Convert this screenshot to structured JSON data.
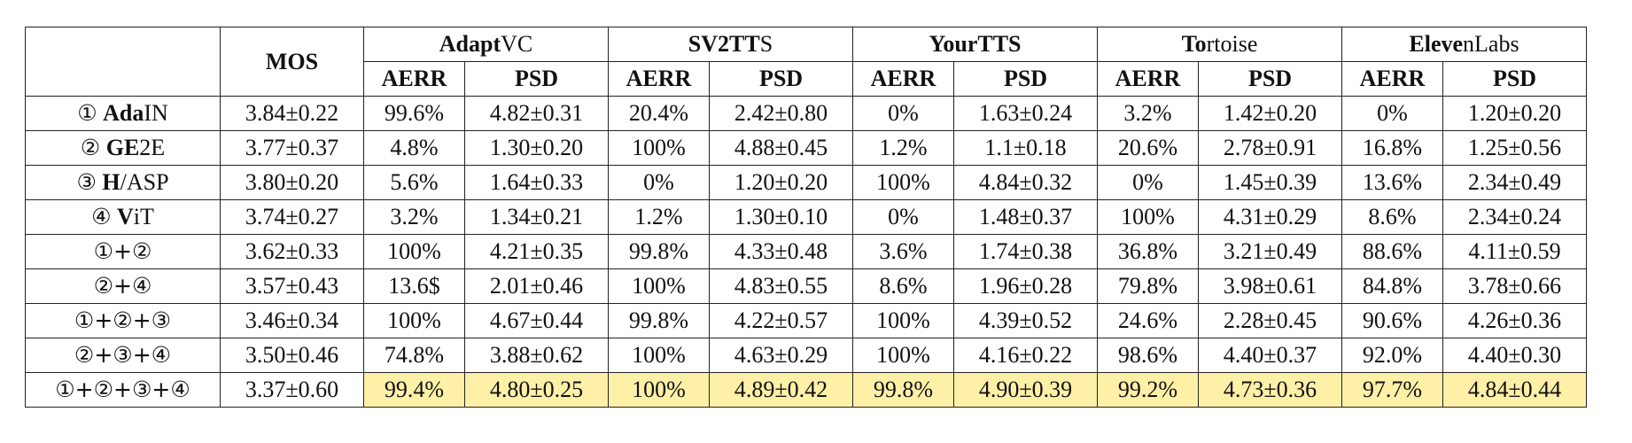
{
  "table": {
    "corner": "",
    "mos_header": "MOS",
    "systems": [
      {
        "bold": "Adapt",
        "rest": "VC"
      },
      {
        "bold": "SV2TT",
        "rest": "S"
      },
      {
        "bold": "YourTTS",
        "rest": ""
      },
      {
        "bold": "To",
        "rest": "rtoise"
      },
      {
        "bold": "Eleve",
        "rest": "nLabs"
      }
    ],
    "sub_headers": {
      "aerr": "AERR",
      "psd": "PSD"
    },
    "rows": [
      {
        "label_circ": "①",
        "label_bold": "Ada",
        "label_rest": "IN",
        "mos": "3.84±0.22",
        "cells": [
          "99.6%",
          "4.82±0.31",
          "20.4%",
          "2.42±0.80",
          "0%",
          "1.63±0.24",
          "3.2%",
          "1.42±0.20",
          "0%",
          "1.20±0.20"
        ],
        "highlight": false
      },
      {
        "label_circ": "②",
        "label_bold": "GE",
        "label_rest": "2E",
        "mos": "3.77±0.37",
        "cells": [
          "4.8%",
          "1.30±0.20",
          "100%",
          "4.88±0.45",
          "1.2%",
          "1.1±0.18",
          "20.6%",
          "2.78±0.91",
          "16.8%",
          "1.25±0.56"
        ],
        "highlight": false
      },
      {
        "label_circ": "③",
        "label_bold": "H",
        "label_rest": "/ASP",
        "mos": "3.80±0.20",
        "cells": [
          "5.6%",
          "1.64±0.33",
          "0%",
          "1.20±0.20",
          "100%",
          "4.84±0.32",
          "0%",
          "1.45±0.39",
          "13.6%",
          "2.34±0.49"
        ],
        "highlight": false
      },
      {
        "label_circ": "④",
        "label_bold": "V",
        "label_rest": "iT",
        "mos": "3.74±0.27",
        "cells": [
          "3.2%",
          "1.34±0.21",
          "1.2%",
          "1.30±0.10",
          "0%",
          "1.48±0.37",
          "100%",
          "4.31±0.29",
          "8.6%",
          "2.34±0.24"
        ],
        "highlight": false
      },
      {
        "label_circ": "①+②",
        "label_bold": "",
        "label_rest": "",
        "mos": "3.62±0.33",
        "cells": [
          "100%",
          "4.21±0.35",
          "99.8%",
          "4.33±0.48",
          "3.6%",
          "1.74±0.38",
          "36.8%",
          "3.21±0.49",
          "88.6%",
          "4.11±0.59"
        ],
        "highlight": false
      },
      {
        "label_circ": "②+④",
        "label_bold": "",
        "label_rest": "",
        "mos": "3.57±0.43",
        "cells": [
          "13.6$",
          "2.01±0.46",
          "100%",
          "4.83±0.55",
          "8.6%",
          "1.96±0.28",
          "79.8%",
          "3.98±0.61",
          "84.8%",
          "3.78±0.66"
        ],
        "highlight": false
      },
      {
        "label_circ": "①+②+③",
        "label_bold": "",
        "label_rest": "",
        "mos": "3.46±0.34",
        "cells": [
          "100%",
          "4.67±0.44",
          "99.8%",
          "4.22±0.57",
          "100%",
          "4.39±0.52",
          "24.6%",
          "2.28±0.45",
          "90.6%",
          "4.26±0.36"
        ],
        "highlight": false
      },
      {
        "label_circ": "②+③+④",
        "label_bold": "",
        "label_rest": "",
        "mos": "3.50±0.46",
        "cells": [
          "74.8%",
          "3.88±0.62",
          "100%",
          "4.63±0.29",
          "100%",
          "4.16±0.22",
          "98.6%",
          "4.40±0.37",
          "92.0%",
          "4.40±0.30"
        ],
        "highlight": false
      },
      {
        "label_circ": "①+②+③+④",
        "label_bold": "",
        "label_rest": "",
        "mos": "3.37±0.60",
        "cells": [
          "99.4%",
          "4.80±0.25",
          "100%",
          "4.89±0.42",
          "99.8%",
          "4.90±0.39",
          "99.2%",
          "4.73±0.36",
          "97.7%",
          "4.84±0.44"
        ],
        "highlight": true
      }
    ],
    "highlight_color": "#fff0a8"
  }
}
